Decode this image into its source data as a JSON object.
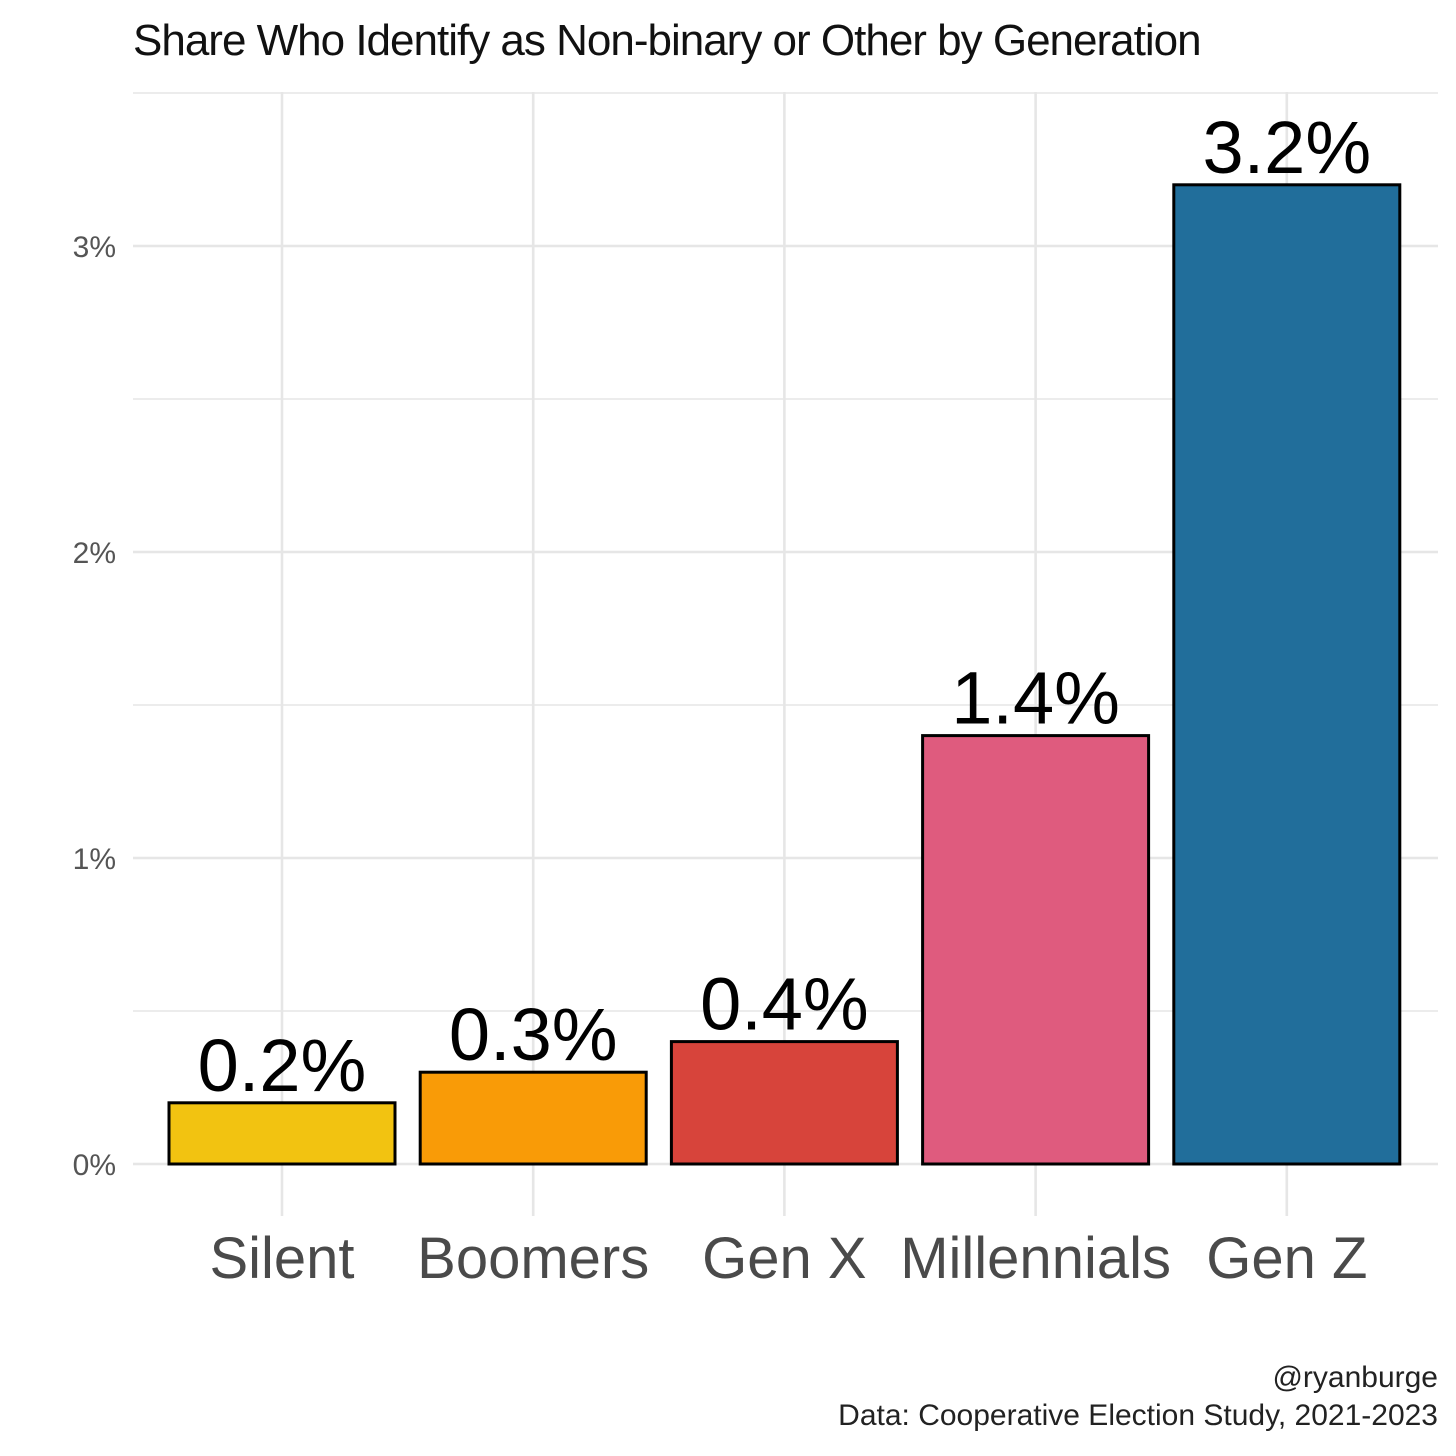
{
  "chart_data": {
    "type": "bar",
    "title": "Share Who Identify as Non-binary or Other by Generation",
    "xlabel": "",
    "ylabel": "",
    "categories": [
      "Silent",
      "Boomers",
      "Gen X",
      "Millennials",
      "Gen Z"
    ],
    "values": [
      0.2,
      0.3,
      0.4,
      1.4,
      3.2
    ],
    "value_labels": [
      "0.2%",
      "0.3%",
      "0.4%",
      "1.4%",
      "3.2%"
    ],
    "bar_colors": [
      "#F2C311",
      "#F99B07",
      "#D7443B",
      "#DF5B7E",
      "#216E9B"
    ],
    "ylim": [
      0,
      3.5
    ],
    "y_ticks": [
      0,
      1,
      2,
      3
    ],
    "y_tick_labels": [
      "0%",
      "1%",
      "2%",
      "3%"
    ],
    "grid": true,
    "legend": "none"
  },
  "caption": {
    "handle": "@ryanburge",
    "source": "Data: Cooperative Election Study, 2021-2023"
  }
}
